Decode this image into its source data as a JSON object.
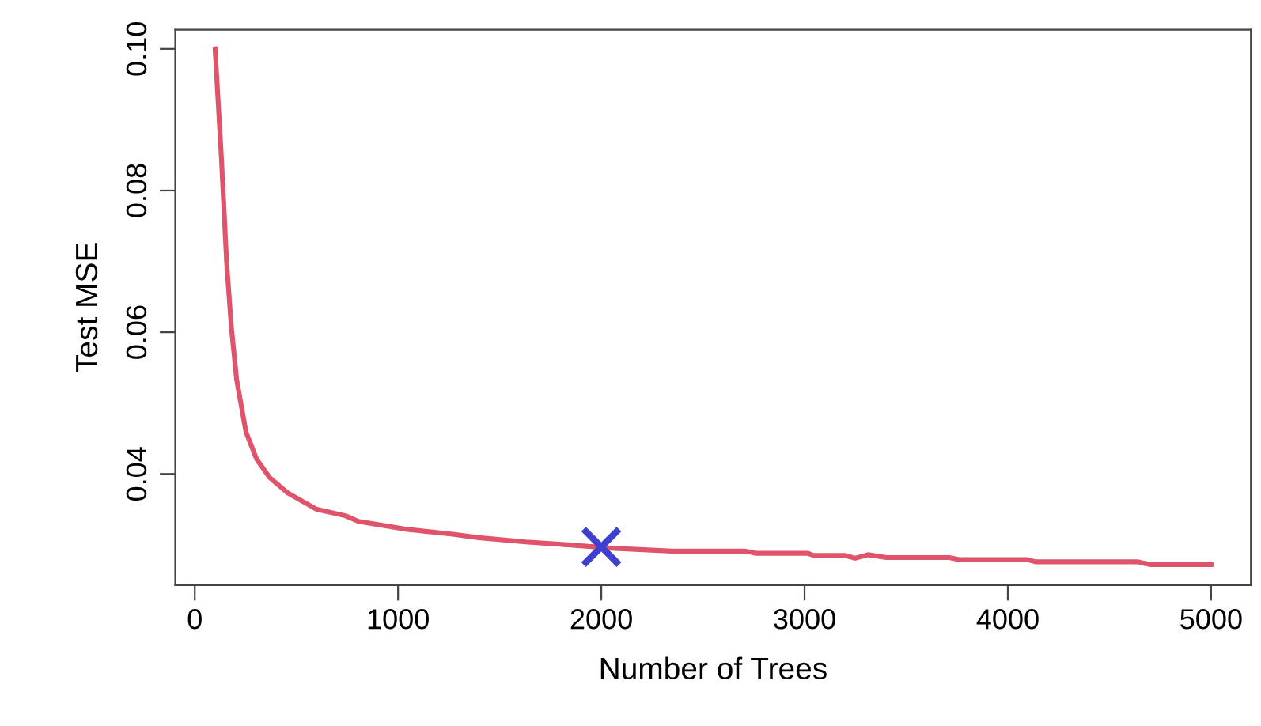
{
  "chart_data": {
    "type": "line",
    "xlabel": "Number of Trees",
    "ylabel": "Test MSE",
    "xlim": [
      -96,
      5196
    ],
    "ylim": [
      0.0243,
      0.1027
    ],
    "xticks": [
      0,
      1000,
      2000,
      3000,
      4000,
      5000
    ],
    "yticks": [
      0.04,
      0.06,
      0.08,
      {
        "value": 0.1,
        "label": "0.10"
      }
    ],
    "grid": false,
    "legend": false,
    "series": [
      {
        "color": "#df536b",
        "marker": "none",
        "line_style": "solid",
        "x": [
          100,
          131,
          157,
          180,
          206,
          252,
          304,
          368,
          458,
          600,
          741,
          805,
          1037,
          1268,
          1397,
          1628,
          1834,
          2066,
          2349,
          2709,
          2760,
          3017,
          3043,
          3198,
          3249,
          3313,
          3403,
          3712,
          3763,
          4097,
          4136,
          4637,
          4702,
          5000
        ],
        "values": [
          0.1,
          0.0846,
          0.0697,
          0.0607,
          0.0533,
          0.0459,
          0.0421,
          0.0395,
          0.0373,
          0.035,
          0.0341,
          0.0333,
          0.0322,
          0.0315,
          0.031,
          0.0304,
          0.03,
          0.0295,
          0.0291,
          0.0291,
          0.0288,
          0.0288,
          0.0285,
          0.0285,
          0.0281,
          0.0286,
          0.0282,
          0.0282,
          0.0279,
          0.0279,
          0.0276,
          0.0276,
          0.0272,
          0.0272
        ]
      },
      {
        "type": "scatter",
        "color": "#4040d0",
        "marker": "cross",
        "x": [
          2000
        ],
        "values": [
          0.0297
        ]
      }
    ]
  }
}
